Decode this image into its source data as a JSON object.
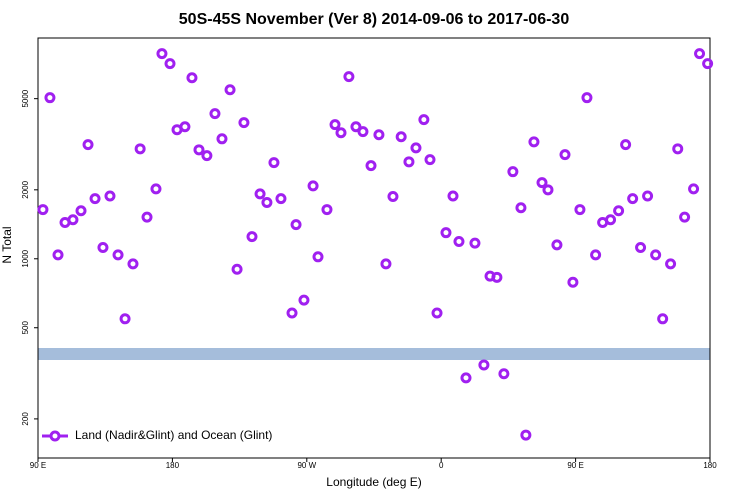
{
  "chart_data": {
    "type": "scatter",
    "title": "50S-45S November (Ver 8)   2014-09-06 to 2017-06-30",
    "x_label": "Longitude (deg E)",
    "y_label": "N Total",
    "yscale": "log",
    "grid": false,
    "legend": "bottom-left",
    "xlim": [
      90,
      540
    ],
    "ylim": [
      135,
      9200
    ],
    "xticks": [
      {
        "value": 90,
        "label": "90 E"
      },
      180,
      {
        "value": 270,
        "label": "90 W"
      },
      {
        "value": 360,
        "label": "0"
      },
      {
        "value": 450,
        "label": "90 E"
      },
      {
        "value": 540,
        "label": "180"
      }
    ],
    "yticks": [
      200,
      500,
      1000,
      2000,
      5000
    ],
    "x": [
      93.3,
      98.0,
      103.4,
      108.1,
      113.4,
      118.8,
      123.5,
      128.2,
      133.5,
      138.2,
      143.6,
      148.3,
      153.6,
      158.4,
      163.0,
      169.0,
      173.0,
      178.4,
      183.1,
      188.4,
      193.1,
      197.8,
      203.1,
      208.5,
      213.2,
      218.6,
      223.3,
      227.9,
      233.3,
      238.7,
      243.3,
      248.0,
      252.7,
      260.1,
      262.8,
      268.1,
      274.2,
      277.5,
      283.5,
      288.9,
      292.9,
      298.2,
      302.9,
      307.6,
      313.0,
      318.3,
      323.0,
      327.7,
      333.2,
      338.4,
      343.1,
      348.4,
      352.5,
      357.2,
      363.2,
      367.9,
      371.9,
      376.6,
      382.6,
      388.6,
      392.7,
      397.3,
      402.0,
      408.0,
      413.4,
      416.7,
      422.1,
      427.5,
      431.5,
      437.5,
      442.9,
      448.2,
      452.9,
      457.6,
      463.4,
      468.1,
      473.4,
      478.8,
      483.5,
      488.2,
      493.5,
      498.2,
      503.6,
      508.3,
      513.6,
      518.4,
      523.0,
      529.0,
      533.0,
      538.4
    ],
    "series": [
      {
        "name": "Land (Nadir&Glint) and Ocean (Glint)",
        "color": "#a020f0",
        "values": [
          1640,
          5050,
          1040,
          1440,
          1480,
          1620,
          3150,
          1830,
          1120,
          1880,
          1040,
          547,
          950,
          3020,
          1520,
          2020,
          7860,
          7110,
          3660,
          3770,
          6170,
          2990,
          2820,
          4300,
          3340,
          5470,
          900,
          3930,
          1250,
          1920,
          1760,
          2630,
          1830,
          580,
          1410,
          660,
          2080,
          1020,
          1640,
          3850,
          3550,
          6240,
          3770,
          3590,
          2550,
          3480,
          950,
          1870,
          3410,
          2650,
          3050,
          4050,
          2710,
          580,
          1300,
          1880,
          1190,
          302,
          1170,
          344,
          840,
          830,
          315,
          2400,
          1670,
          170,
          3240,
          2150,
          2000,
          1150,
          2850,
          790,
          1640,
          5050,
          1040,
          1440,
          1480,
          1620,
          3150,
          1830,
          1120,
          1880,
          1040,
          547,
          950,
          3020,
          1520,
          2020,
          7860,
          7110
        ]
      }
    ]
  }
}
